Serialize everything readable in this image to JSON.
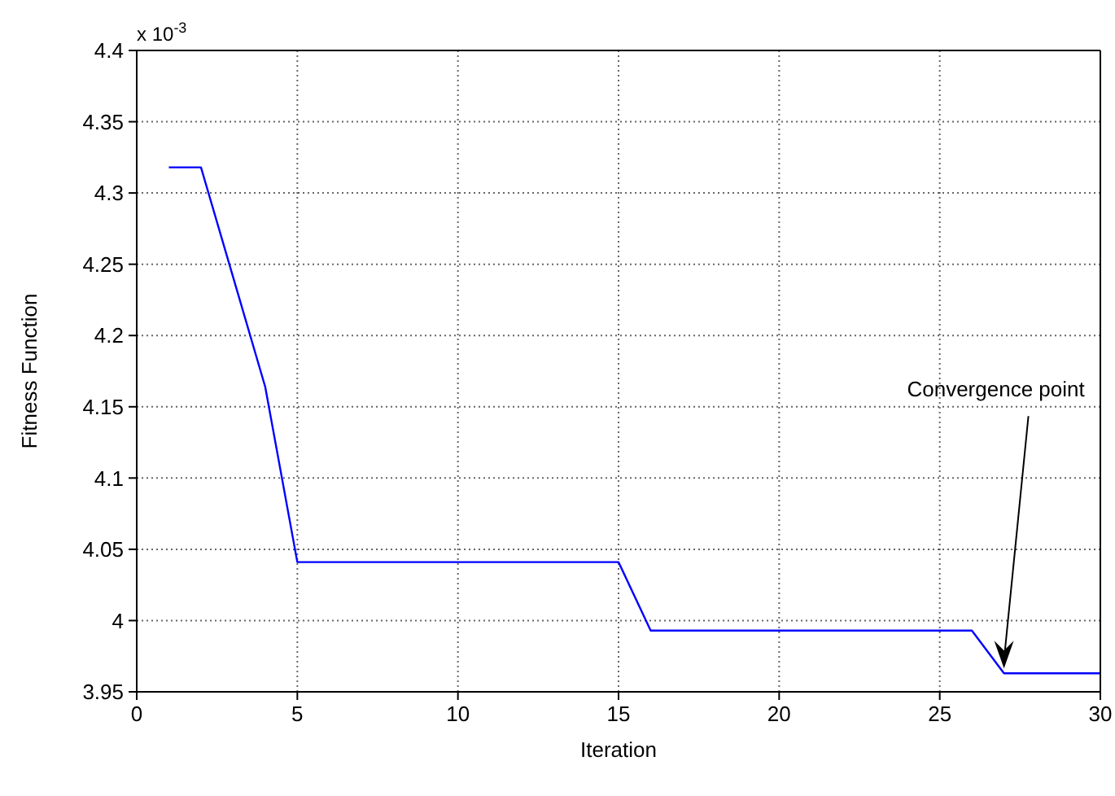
{
  "chart_data": {
    "type": "line",
    "xlabel": "Iteration",
    "ylabel": "Fitness Function",
    "x": [
      1,
      2,
      3,
      4,
      5,
      10,
      15,
      16,
      20,
      26,
      27,
      30
    ],
    "series": [
      {
        "color": "#0000ff",
        "values": [
          4.318,
          4.318,
          4.241,
          4.164,
          4.041,
          4.041,
          4.041,
          3.993,
          3.993,
          3.993,
          3.963,
          3.963
        ]
      }
    ],
    "xlim": [
      0,
      30
    ],
    "xticks": [
      0,
      5,
      10,
      15,
      20,
      25,
      30
    ],
    "ylim": [
      3.95,
      4.4
    ],
    "yticks": [
      3.95,
      4,
      4.05,
      4.1,
      4.15,
      4.2,
      4.25,
      4.3,
      4.35,
      4.4
    ],
    "grid": true,
    "marker": "none",
    "line_style": "solid",
    "annotations": [
      "x 10$^{-3}$",
      {
        "text": "Convergence point",
        "x": 27,
        "y": 3.963
      }
    ]
  }
}
